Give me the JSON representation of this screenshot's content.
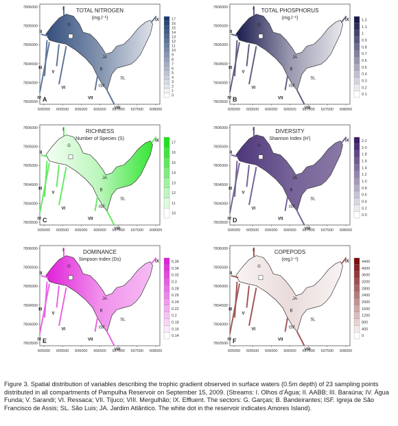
{
  "figure": {
    "x_ticks": [
      "605000",
      "605500",
      "606000",
      "606500",
      "607000",
      "607500",
      "608000"
    ],
    "y_ticks": [
      "7806000",
      "7805500",
      "7805000",
      "7804500",
      "7804000",
      "7803500"
    ],
    "stream_labels": [
      "I",
      "II",
      "III",
      "IV",
      "V",
      "VI",
      "VII",
      "VIII",
      "IX"
    ],
    "sector_labels": [
      "G",
      "JA",
      "B",
      "ISF",
      "SL"
    ],
    "panels": [
      {
        "letter": "A",
        "title": "TOTAL NITROGEN",
        "subtitle": "(mg.l⁻¹)",
        "color": "#1c3a6e",
        "scale": [
          "17",
          "16",
          "15",
          "14",
          "13",
          "12",
          "11",
          "10",
          "9",
          "8",
          "7",
          "6",
          "5",
          "4",
          "3",
          "2",
          "1",
          "0"
        ]
      },
      {
        "letter": "B",
        "title": "TOTAL PHOSPHORUS",
        "subtitle": "(mg.l⁻¹)",
        "color": "#1a1a4e",
        "scale": [
          "1.2",
          "1.1",
          "1",
          "0.9",
          "0.8",
          "0.7",
          "0.6",
          "0.5",
          "0.4",
          "0.3",
          "0.2",
          "0.1"
        ]
      },
      {
        "letter": "C",
        "title": "RICHNESS",
        "subtitle": "Number of Species (S)",
        "color": "#1ee21e",
        "scale": [
          "17",
          "16",
          "15",
          "14",
          "13",
          "12",
          "11",
          "10"
        ]
      },
      {
        "letter": "D",
        "title": "DIVERSITY",
        "subtitle": "Shannon Index (H')",
        "color": "#3a1f6b",
        "scale": [
          "2.2",
          "2.0",
          "1.8",
          "1.6",
          "1.4",
          "1.2",
          "1.0",
          "0.8",
          "0.6",
          "0.4",
          "0.2",
          "0.0"
        ]
      },
      {
        "letter": "E",
        "title": "DOMINANCE",
        "subtitle": "Simpson Index (Ds)",
        "color": "#e020d8",
        "scale": [
          "0.36",
          "0.34",
          "0.32",
          "0.3",
          "0.28",
          "0.26",
          "0.24",
          "0.22",
          "0.2",
          "0.18",
          "0.16",
          "0.14"
        ]
      },
      {
        "letter": "F",
        "title": "COPEPODS",
        "subtitle": "(org.l⁻¹)",
        "color": "#7a0f0f",
        "scale": [
          "4400",
          "4000",
          "3600",
          "3200",
          "2800",
          "2400",
          "2000",
          "1600",
          "1200",
          "800",
          "400",
          "0"
        ]
      }
    ]
  },
  "caption": "Figure 3. Spatial distribution of variables describing the trophic gradient observed in surface waters (0.5m depth) of 23 sampling points distributed in all compartments of Pampulha Reservoir on September 15, 2009. (Streams: I. Olhos d’Água; II. AABB; III. Baraúna; IV. Água Funda; V. Sarandi; VI. Ressaca; VII. Tijuco; VIII. Mergulhão; IX. Effluent. The sectors: G. Garças; B. Bandeirantes; ISF. Igreja de São Francisco de Assis; SL. São Luis; JA. Jardim Atlântico. The white dot in the reservoir indicates Amores Island)."
}
